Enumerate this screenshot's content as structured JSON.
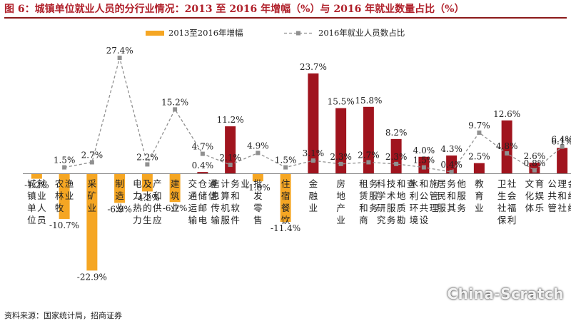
{
  "page": {
    "title": "图 6：城镇单位就业人员的分行业情况：2013 至 2016 年增幅（%）与 2016 年就业数量占比（%）",
    "source": "资料来源：国家统计局，招商证券",
    "watermark": "China-Scratch"
  },
  "chart_data": {
    "type": "bar",
    "title": "图 6：城镇单位就业人员的分行业情况：2013 至 2016 年增幅（%）与 2016 年就业数量占比（%）",
    "categories": [
      "城镇单位就业人员",
      "农林牧渔业",
      "采矿业",
      "制造业",
      "电力热力及水的生产和供应",
      "建筑业",
      "交通运输仓储邮电通信",
      "信息传输计算机服务和软件业",
      "批发零售",
      "住宿餐饮",
      "金融业",
      "房地产业",
      "租赁和商务服务",
      "科学研究技术服务和地质勘查",
      "水利环境和公共设施管理",
      "居民服务和其他服务",
      "教育业",
      "卫生社保社会福利",
      "文化体育娱乐",
      "公共管理和社会组织"
    ],
    "category_labels": [
      "城镇单位就业人员",
      "农林牧渔业",
      "采矿业",
      "制造业",
      "电力热力及水的生产和供应",
      "建筑业",
      "交通运输仓储邮电通信",
      "信息传输计算机服务和软件业",
      "批发零售",
      "住宿餐饮",
      "金融业",
      "房地产业",
      "租赁和商务服务",
      "科学研究技术服务和地质勘查",
      "水利环境和公共设施管理",
      "居民服务和其他服务",
      "教育业",
      "卫生社保社会福利",
      "文化体育娱乐",
      "公共管理和社会组织"
    ],
    "series": [
      {
        "name": "2013至2016年增幅",
        "kind": "bar",
        "values": [
          -1.2,
          -10.7,
          -22.9,
          -6.9,
          -4.2,
          -6.7,
          0.4,
          11.2,
          -1.8,
          -11.4,
          23.7,
          15.5,
          15.8,
          8.2,
          4.0,
          4.3,
          2.5,
          12.6,
          2.6,
          6.1
        ],
        "labels": [
          "-1.2%",
          "-10.7%",
          "-22.9%",
          "-6.9%",
          "-4.2%",
          "-6.7%",
          "0.4%",
          "11.2%",
          "-1.8%",
          "-11.4%",
          "23.7%",
          "15.5%",
          "15.8%",
          "8.2%",
          "4.0%",
          "4.3%",
          "2.5%",
          "12.6%",
          "2.6%",
          "6.1%"
        ]
      },
      {
        "name": "2016年就业人员数占比",
        "kind": "line",
        "values": [
          null,
          1.5,
          2.7,
          27.4,
          2.2,
          15.2,
          4.7,
          2.1,
          4.9,
          1.5,
          3.1,
          2.3,
          2.7,
          2.3,
          1.5,
          0.4,
          9.7,
          4.8,
          0.8,
          6.4
        ],
        "labels": [
          "",
          "1.5%",
          "2.7%",
          "27.4%",
          "2.2%",
          "15.2%",
          "4.7%",
          "2.1%",
          "4.9%",
          "1.5%",
          "3.1%",
          "2.3%",
          "2.7%",
          "2.3%",
          "1.5%",
          "0.4%",
          "9.7%",
          "4.8%",
          "0.8%",
          "6.4%"
        ]
      }
    ],
    "ylim": [
      -25,
      30
    ],
    "grid": false,
    "legend": "top",
    "colors": {
      "positive_bar": "#a0141e",
      "negative_bar": "#f5a623",
      "line": "#909090",
      "axis": "#888888",
      "text": "#222222"
    }
  }
}
